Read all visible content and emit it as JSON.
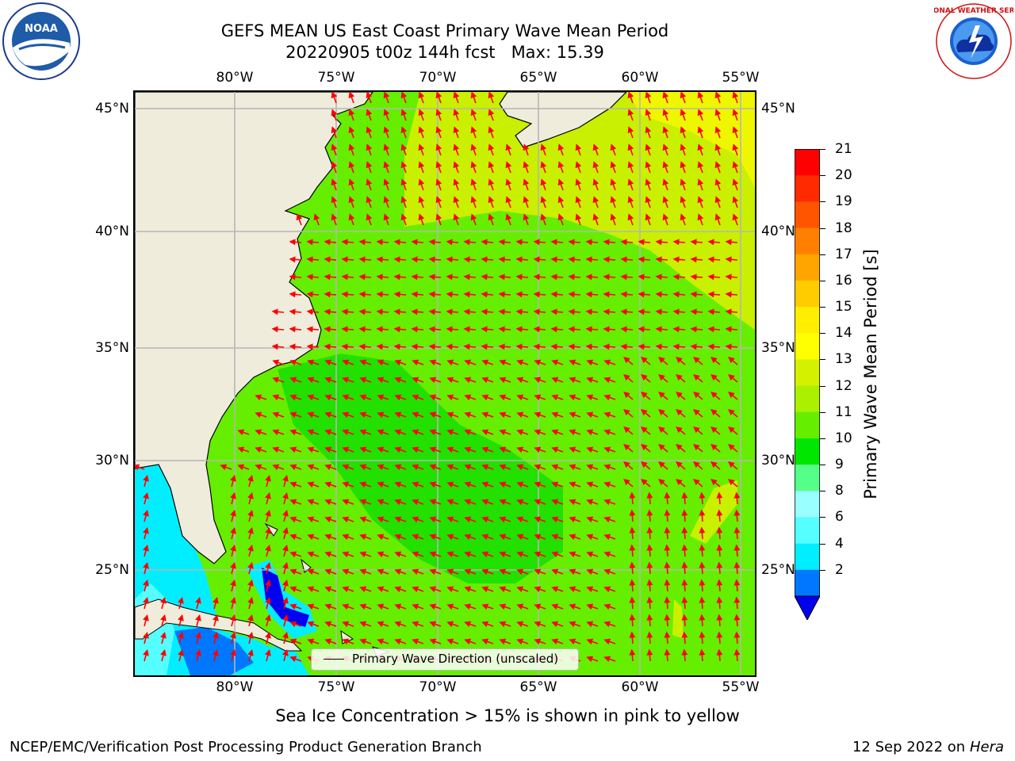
{
  "header": {
    "title_line1": "GEFS MEAN US East Coast Primary Wave Mean Period",
    "title_line2": "20220905 t00z 144h fcst   Max: 15.39"
  },
  "axes": {
    "lon_labels": [
      "80°W",
      "75°W",
      "70°W",
      "65°W",
      "60°W",
      "55°W"
    ],
    "lat_labels": [
      "45°N",
      "40°N",
      "35°N",
      "30°N",
      "25°N"
    ]
  },
  "legend": {
    "label": "Primary Wave Direction (unscaled)"
  },
  "colorbar": {
    "label": "Primary Wave Mean Period [s]",
    "ticks": [
      "21",
      "20",
      "19",
      "18",
      "17",
      "16",
      "15",
      "14",
      "13",
      "12",
      "11",
      "10",
      "9",
      "8",
      "6",
      "4",
      "2"
    ],
    "colors": [
      "#ff0000",
      "#ff2a00",
      "#ff5500",
      "#ff8000",
      "#ffa500",
      "#ffcc00",
      "#ffee00",
      "#ffff00",
      "#d4f200",
      "#aaf000",
      "#66ee00",
      "#00e600",
      "#55ff88",
      "#99ffff",
      "#55ffff",
      "#00eeff",
      "#0077ff",
      "#0000ee"
    ]
  },
  "footer": {
    "sea_ice_note": "Sea Ice Concentration > 15% is shown in pink to yellow",
    "credit": "NCEP/EMC/Verification Post Processing Product Generation Branch",
    "date": "12 Sep 2022 on",
    "host": "Hera"
  },
  "logos": {
    "noaa": "NOAA",
    "nws": "NATIONAL WEATHER SERVICE"
  },
  "map_data": {
    "field": "Primary Wave Mean Period",
    "max": 15.39,
    "region": "US East Coast / Western North Atlantic",
    "lon_range": [
      -85,
      -54.5
    ],
    "lat_range": [
      20.3,
      45.8
    ]
  }
}
